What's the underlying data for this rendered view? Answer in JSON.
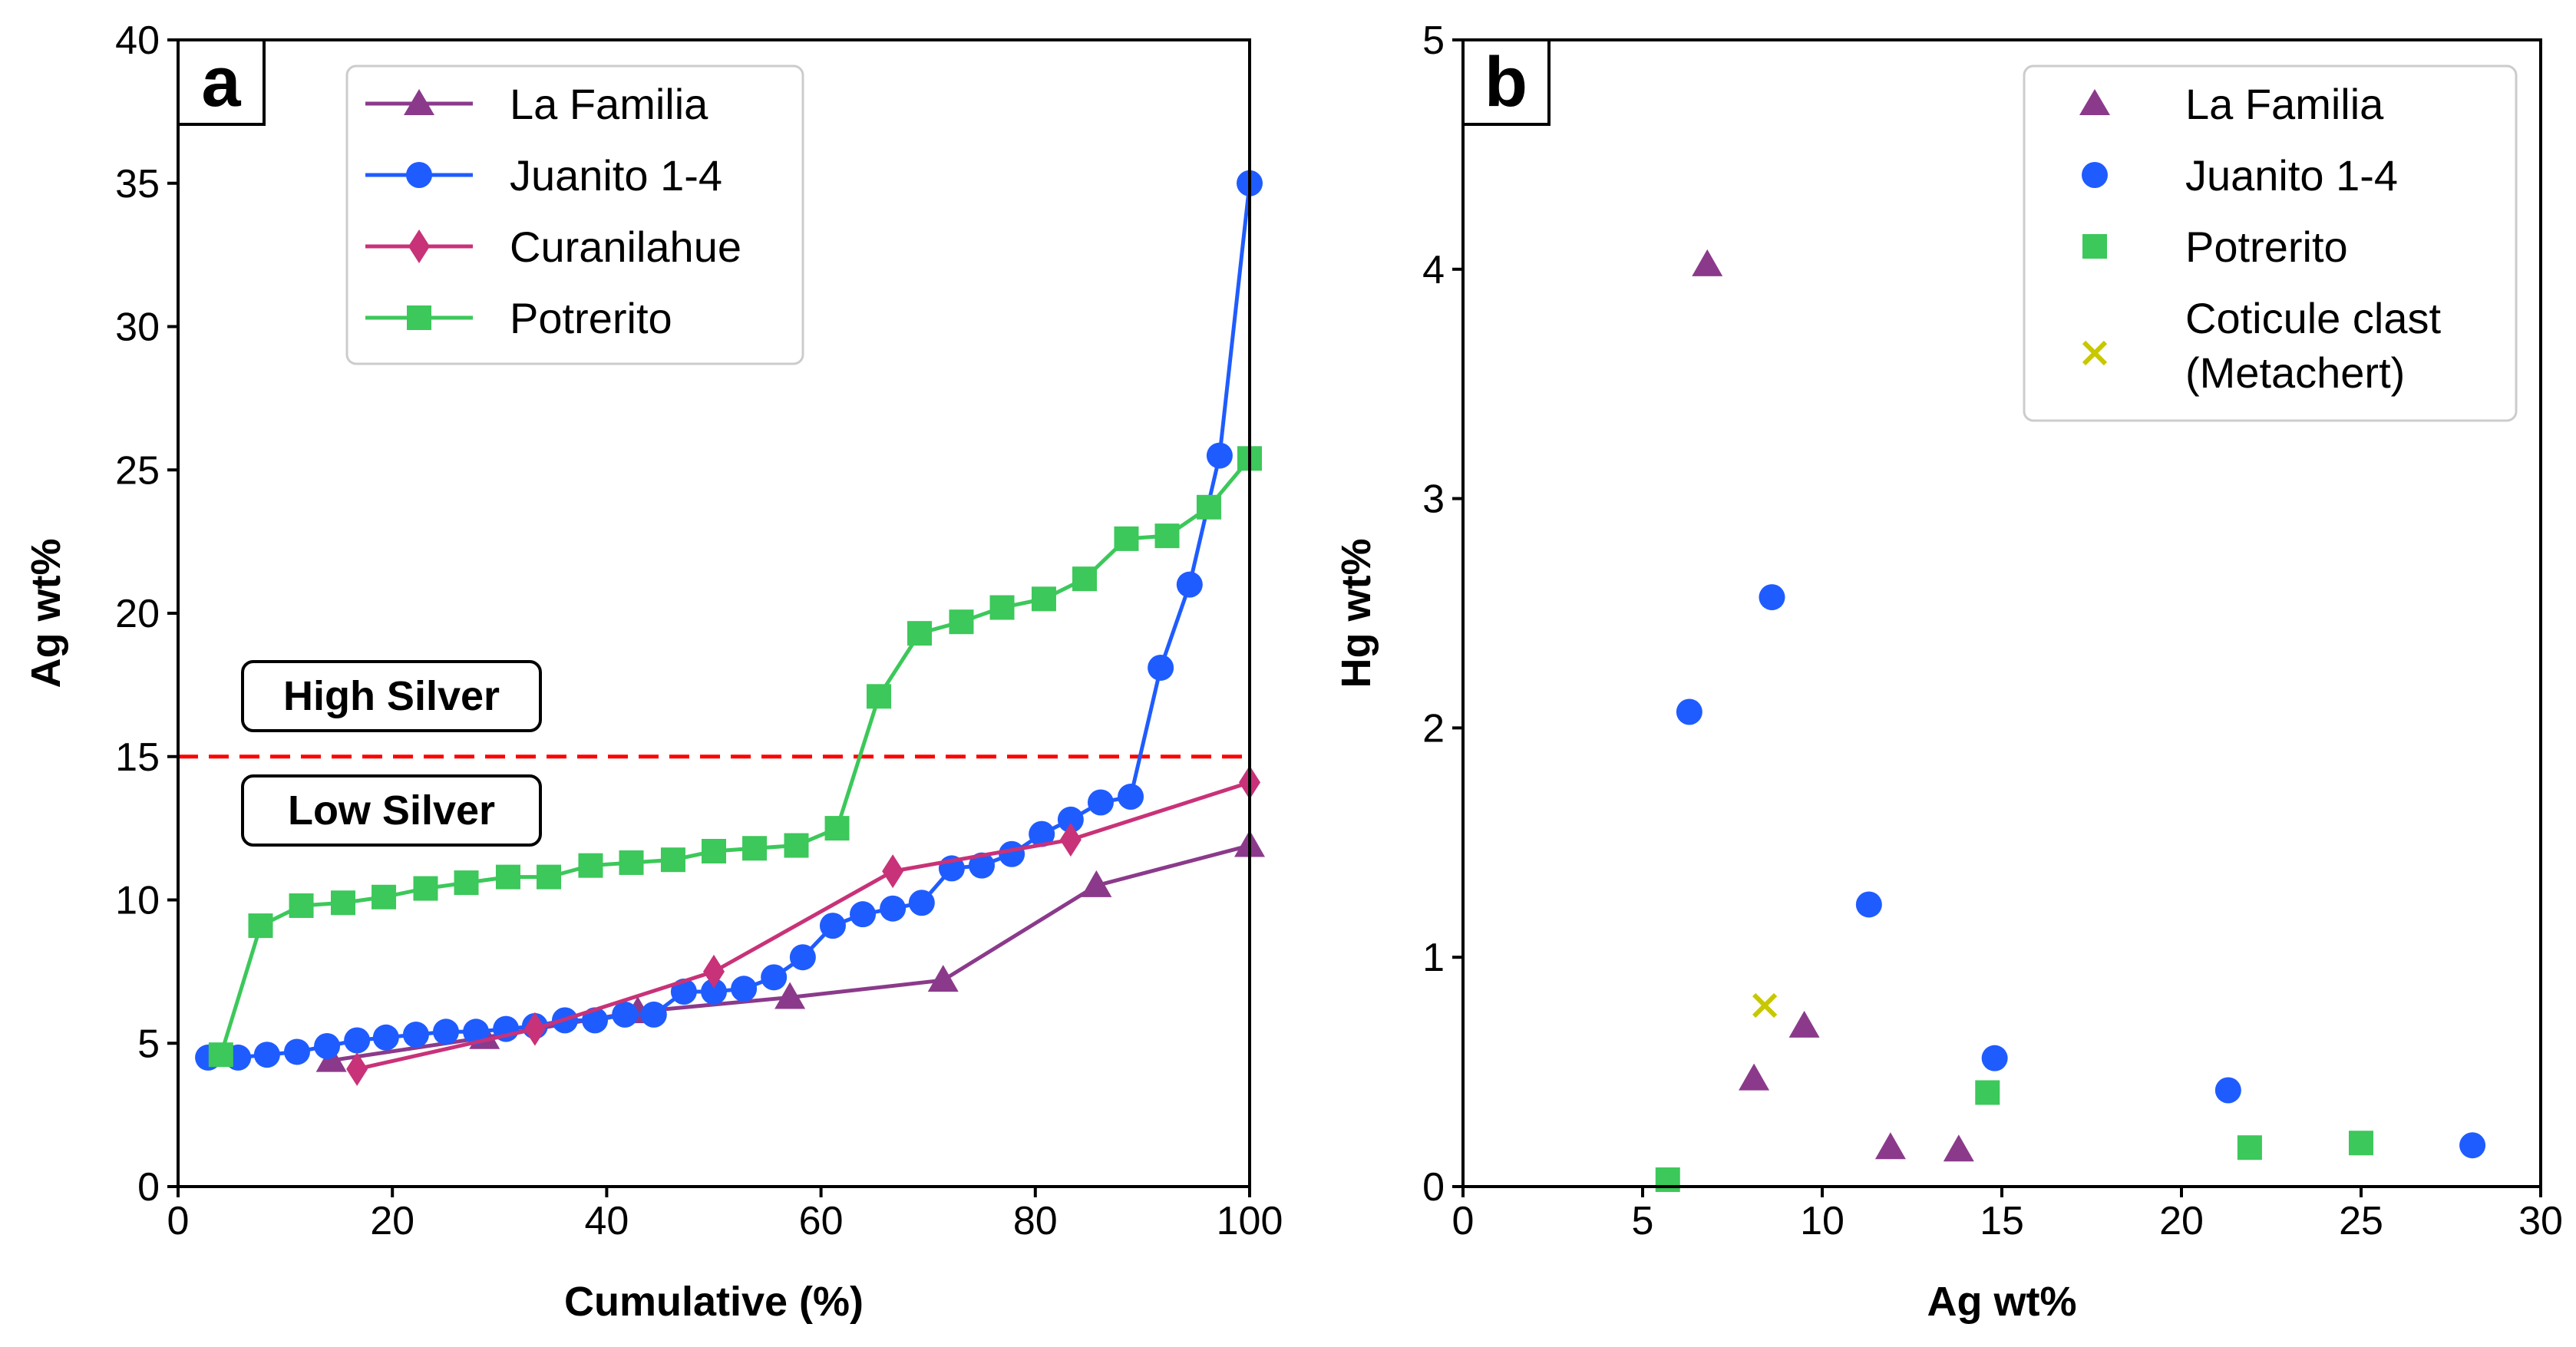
{
  "chart_data": [
    {
      "type": "line",
      "panel_label": "a",
      "xlabel": "Cumulative (%)",
      "ylabel": "Ag wt%",
      "xlim": [
        0,
        100
      ],
      "ylim": [
        0,
        40
      ],
      "xticks": [
        "0",
        "20",
        "40",
        "60",
        "80",
        "100"
      ],
      "yticks": [
        "0",
        "5",
        "10",
        "15",
        "20",
        "25",
        "30",
        "35",
        "40"
      ],
      "legend_location": "top-center",
      "threshold": {
        "value": 15,
        "color": "#ff0000",
        "style": "dashed"
      },
      "annotations": {
        "high": "High Silver",
        "low": "Low Silver"
      },
      "series": [
        {
          "name": "La Familia",
          "color": "#8b3a8b",
          "marker": "triangle",
          "x": [
            14.3,
            28.6,
            42.9,
            57.1,
            71.4,
            85.7,
            100
          ],
          "y": [
            4.4,
            5.2,
            6.1,
            6.6,
            7.2,
            10.5,
            11.9
          ]
        },
        {
          "name": "Juanito 1-4",
          "color": "#1f5cff",
          "marker": "circle",
          "x": [
            2.8,
            5.6,
            8.3,
            11.1,
            13.9,
            16.7,
            19.4,
            22.2,
            25.0,
            27.8,
            30.6,
            33.3,
            36.1,
            38.9,
            41.7,
            44.4,
            47.2,
            50.0,
            52.8,
            55.6,
            58.3,
            61.1,
            63.9,
            66.7,
            69.4,
            72.2,
            75.0,
            77.8,
            80.6,
            83.3,
            86.1,
            88.9,
            91.7,
            94.4,
            97.2,
            100
          ],
          "y": [
            4.5,
            4.5,
            4.6,
            4.7,
            4.9,
            5.1,
            5.2,
            5.3,
            5.4,
            5.4,
            5.5,
            5.6,
            5.8,
            5.8,
            6.0,
            6.0,
            6.8,
            6.8,
            6.9,
            7.3,
            8.0,
            9.1,
            9.5,
            9.7,
            9.9,
            11.1,
            11.2,
            11.6,
            12.3,
            12.8,
            13.4,
            13.6,
            18.1,
            21.0,
            25.5,
            35.0
          ]
        },
        {
          "name": "Curanilahue",
          "color": "#c83278",
          "marker": "diamond",
          "x": [
            16.7,
            33.3,
            50.0,
            66.7,
            83.3,
            100
          ],
          "y": [
            4.1,
            5.5,
            7.5,
            11.0,
            12.1,
            14.1
          ]
        },
        {
          "name": "Potrerito",
          "color": "#3cc85a",
          "marker": "square",
          "x": [
            4,
            7.7,
            11.5,
            15.4,
            19.2,
            23.1,
            26.9,
            30.8,
            34.6,
            38.5,
            42.3,
            46.2,
            50.0,
            53.8,
            57.7,
            61.5,
            65.4,
            69.2,
            73.1,
            76.9,
            80.8,
            84.6,
            88.5,
            92.3,
            96.2,
            100
          ],
          "y": [
            4.6,
            9.1,
            9.8,
            9.9,
            10.1,
            10.4,
            10.6,
            10.8,
            10.8,
            11.2,
            11.3,
            11.4,
            11.7,
            11.8,
            11.9,
            12.5,
            17.1,
            19.3,
            19.7,
            20.2,
            20.5,
            21.2,
            22.6,
            22.7,
            23.7,
            25.4
          ]
        }
      ]
    },
    {
      "type": "scatter",
      "panel_label": "b",
      "xlabel": "Ag wt%",
      "ylabel": "Hg wt%",
      "xlim": [
        0,
        30
      ],
      "ylim": [
        0,
        5
      ],
      "xticks": [
        "0",
        "5",
        "10",
        "15",
        "20",
        "25",
        "30"
      ],
      "yticks": [
        "0",
        "1",
        "2",
        "3",
        "4",
        "5"
      ],
      "legend_location": "top-right",
      "series": [
        {
          "name": "La Familia",
          "color": "#8b3a8b",
          "marker": "triangle",
          "x": [
            6.8,
            8.1,
            9.5,
            11.9,
            13.8
          ],
          "y": [
            4.02,
            0.47,
            0.7,
            0.17,
            0.16
          ]
        },
        {
          "name": "Juanito 1-4",
          "color": "#1f5cff",
          "marker": "circle",
          "x": [
            6.3,
            8.6,
            11.3,
            14.8,
            21.3,
            28.1
          ],
          "y": [
            2.07,
            2.57,
            1.23,
            0.56,
            0.42,
            0.18
          ]
        },
        {
          "name": "Potrerito",
          "color": "#3cc85a",
          "marker": "square",
          "x": [
            5.7,
            14.6,
            21.9,
            25.0
          ],
          "y": [
            0.03,
            0.41,
            0.17,
            0.19
          ]
        },
        {
          "name": "Coticule clast",
          "name_line2": "(Metachert)",
          "color": "#c8c800",
          "marker": "x",
          "x": [
            8.4
          ],
          "y": [
            0.79
          ]
        }
      ]
    }
  ]
}
